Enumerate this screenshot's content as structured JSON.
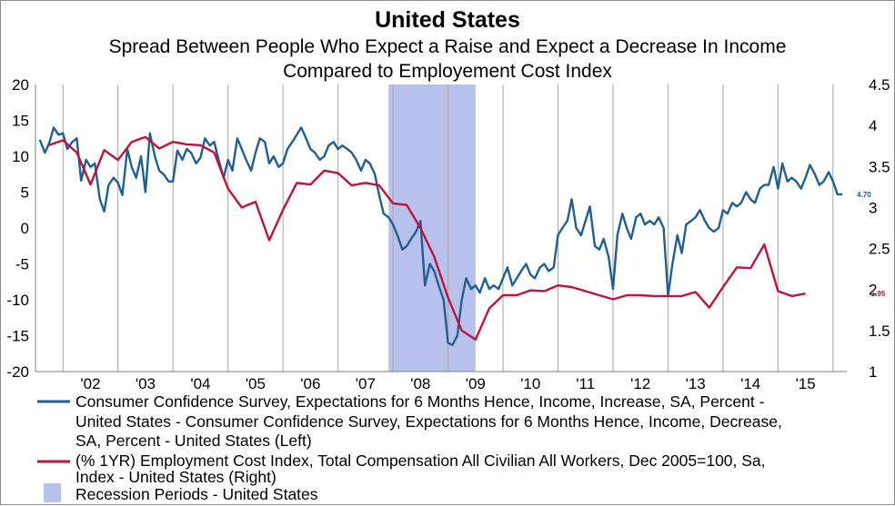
{
  "chart_data": {
    "type": "line",
    "title": "United States",
    "subtitle": [
      "Spread Between People Who Expect a Raise and Expect a Decrease In Income",
      "Compared to Employement Cost Index"
    ],
    "x_tick_labels": [
      "'02",
      "'03",
      "'04",
      "'05",
      "'06",
      "'07",
      "'08",
      "'09",
      "'10",
      "'11",
      "'12",
      "'13",
      "'14",
      "'15"
    ],
    "x_range": [
      2001.5,
      2016.25
    ],
    "ylim_left": [
      -20,
      20
    ],
    "yticks_left": [
      "20",
      "15",
      "10",
      "5",
      "0",
      "-5",
      "-10",
      "-15",
      "-20"
    ],
    "ylim_right": [
      1,
      4.5
    ],
    "yticks_right": [
      "4.5",
      "4",
      "3.5",
      "3",
      "2.5",
      "2",
      "1.5",
      "1"
    ],
    "grid": "vertical gridlines at year boundaries",
    "recession_periods": [
      {
        "start": 2007.92,
        "end": 2009.5
      }
    ],
    "series": [
      {
        "name": "Consumer Confidence Survey, Expectations for 6 Months Hence, Income, Increase, SA, Percent - United States - Consumer Confidence Survey, Expectations for 6 Months Hence, Income, Decrease, SA, Percent - United States  (Left)",
        "axis": "left",
        "color": "#1f5f91",
        "end_label": "4.70",
        "points": [
          [
            2001.58,
            12.3
          ],
          [
            2001.67,
            10.5
          ],
          [
            2001.75,
            11.8
          ],
          [
            2001.83,
            14.0
          ],
          [
            2001.92,
            13.0
          ],
          [
            2002.0,
            13.2
          ],
          [
            2002.08,
            11.0
          ],
          [
            2002.17,
            12.0
          ],
          [
            2002.25,
            12.5
          ],
          [
            2002.33,
            6.6
          ],
          [
            2002.42,
            9.5
          ],
          [
            2002.5,
            8.5
          ],
          [
            2002.58,
            9.0
          ],
          [
            2002.67,
            4.0
          ],
          [
            2002.75,
            2.3
          ],
          [
            2002.83,
            6.0
          ],
          [
            2002.92,
            7.0
          ],
          [
            2003.0,
            6.3
          ],
          [
            2003.08,
            4.6
          ],
          [
            2003.17,
            11.0
          ],
          [
            2003.25,
            8.5
          ],
          [
            2003.33,
            7.0
          ],
          [
            2003.42,
            10.0
          ],
          [
            2003.5,
            5.0
          ],
          [
            2003.58,
            13.2
          ],
          [
            2003.67,
            10.0
          ],
          [
            2003.75,
            8.0
          ],
          [
            2003.83,
            7.5
          ],
          [
            2003.92,
            6.5
          ],
          [
            2004.0,
            6.5
          ],
          [
            2004.08,
            10.8
          ],
          [
            2004.17,
            9.5
          ],
          [
            2004.25,
            11.0
          ],
          [
            2004.33,
            10.5
          ],
          [
            2004.42,
            9.0
          ],
          [
            2004.5,
            9.8
          ],
          [
            2004.58,
            12.5
          ],
          [
            2004.67,
            11.5
          ],
          [
            2004.75,
            12.0
          ],
          [
            2004.83,
            9.5
          ],
          [
            2004.92,
            7.0
          ],
          [
            2005.0,
            9.5
          ],
          [
            2005.08,
            8.0
          ],
          [
            2005.17,
            12.5
          ],
          [
            2005.25,
            11.0
          ],
          [
            2005.33,
            9.5
          ],
          [
            2005.42,
            8.0
          ],
          [
            2005.5,
            10.5
          ],
          [
            2005.58,
            12.5
          ],
          [
            2005.67,
            12.0
          ],
          [
            2005.75,
            9.0
          ],
          [
            2005.83,
            10.0
          ],
          [
            2005.92,
            8.5
          ],
          [
            2006.0,
            9.0
          ],
          [
            2006.08,
            11.0
          ],
          [
            2006.17,
            12.0
          ],
          [
            2006.25,
            13.0
          ],
          [
            2006.33,
            14.0
          ],
          [
            2006.42,
            12.5
          ],
          [
            2006.5,
            11.0
          ],
          [
            2006.58,
            10.5
          ],
          [
            2006.67,
            9.5
          ],
          [
            2006.75,
            10.0
          ],
          [
            2006.83,
            11.5
          ],
          [
            2006.92,
            12.0
          ],
          [
            2007.0,
            11.0
          ],
          [
            2007.08,
            11.5
          ],
          [
            2007.17,
            11.0
          ],
          [
            2007.25,
            10.5
          ],
          [
            2007.33,
            9.5
          ],
          [
            2007.42,
            8.0
          ],
          [
            2007.5,
            9.5
          ],
          [
            2007.58,
            9.0
          ],
          [
            2007.67,
            7.5
          ],
          [
            2007.75,
            4.5
          ],
          [
            2007.83,
            2.0
          ],
          [
            2007.92,
            1.5
          ],
          [
            2008.0,
            0.5
          ],
          [
            2008.08,
            -1.0
          ],
          [
            2008.17,
            -3.0
          ],
          [
            2008.25,
            -2.5
          ],
          [
            2008.33,
            -1.5
          ],
          [
            2008.42,
            -0.5
          ],
          [
            2008.5,
            1.0
          ],
          [
            2008.58,
            -8.0
          ],
          [
            2008.67,
            -5.0
          ],
          [
            2008.75,
            -6.0
          ],
          [
            2008.83,
            -8.0
          ],
          [
            2008.92,
            -10.0
          ],
          [
            2009.0,
            -16.0
          ],
          [
            2009.08,
            -16.3
          ],
          [
            2009.17,
            -15.0
          ],
          [
            2009.25,
            -10.0
          ],
          [
            2009.33,
            -7.0
          ],
          [
            2009.42,
            -8.5
          ],
          [
            2009.5,
            -8.0
          ],
          [
            2009.58,
            -9.0
          ],
          [
            2009.67,
            -7.0
          ],
          [
            2009.75,
            -8.5
          ],
          [
            2009.83,
            -8.0
          ],
          [
            2009.92,
            -8.5
          ],
          [
            2010.0,
            -7.0
          ],
          [
            2010.08,
            -5.5
          ],
          [
            2010.17,
            -8.0
          ],
          [
            2010.25,
            -7.0
          ],
          [
            2010.33,
            -6.0
          ],
          [
            2010.42,
            -5.0
          ],
          [
            2010.5,
            -6.5
          ],
          [
            2010.58,
            -7.0
          ],
          [
            2010.67,
            -5.5
          ],
          [
            2010.75,
            -5.0
          ],
          [
            2010.83,
            -6.0
          ],
          [
            2010.92,
            -5.5
          ],
          [
            2011.0,
            -1.0
          ],
          [
            2011.08,
            0.0
          ],
          [
            2011.17,
            1.0
          ],
          [
            2011.25,
            4.0
          ],
          [
            2011.33,
            0.0
          ],
          [
            2011.42,
            -1.0
          ],
          [
            2011.5,
            1.0
          ],
          [
            2011.58,
            3.0
          ],
          [
            2011.67,
            -2.5
          ],
          [
            2011.75,
            -3.0
          ],
          [
            2011.83,
            -1.5
          ],
          [
            2011.92,
            -4.0
          ],
          [
            2012.0,
            -8.5
          ],
          [
            2012.08,
            -1.0
          ],
          [
            2012.17,
            2.0
          ],
          [
            2012.25,
            0.0
          ],
          [
            2012.33,
            -1.5
          ],
          [
            2012.42,
            1.5
          ],
          [
            2012.5,
            2.0
          ],
          [
            2012.58,
            0.5
          ],
          [
            2012.67,
            1.0
          ],
          [
            2012.75,
            0.5
          ],
          [
            2012.83,
            1.5
          ],
          [
            2012.92,
            0.0
          ],
          [
            2013.0,
            -9.5
          ],
          [
            2013.08,
            -5.0
          ],
          [
            2013.17,
            -1.0
          ],
          [
            2013.25,
            -3.5
          ],
          [
            2013.33,
            0.5
          ],
          [
            2013.42,
            1.0
          ],
          [
            2013.5,
            1.5
          ],
          [
            2013.58,
            2.5
          ],
          [
            2013.67,
            1.0
          ],
          [
            2013.75,
            0.0
          ],
          [
            2013.83,
            -0.5
          ],
          [
            2013.92,
            0.0
          ],
          [
            2014.0,
            2.5
          ],
          [
            2014.08,
            2.0
          ],
          [
            2014.17,
            3.5
          ],
          [
            2014.25,
            3.0
          ],
          [
            2014.33,
            3.5
          ],
          [
            2014.42,
            5.0
          ],
          [
            2014.5,
            4.0
          ],
          [
            2014.58,
            3.5
          ],
          [
            2014.67,
            5.5
          ],
          [
            2014.75,
            6.0
          ],
          [
            2014.83,
            6.0
          ],
          [
            2014.92,
            8.5
          ],
          [
            2015.0,
            5.5
          ],
          [
            2015.08,
            9.0
          ],
          [
            2015.17,
            6.5
          ],
          [
            2015.25,
            7.0
          ],
          [
            2015.33,
            6.5
          ],
          [
            2015.42,
            5.5
          ],
          [
            2015.5,
            7.0
          ],
          [
            2015.58,
            8.8
          ],
          [
            2015.67,
            7.5
          ],
          [
            2015.75,
            6.0
          ],
          [
            2015.83,
            6.5
          ],
          [
            2015.92,
            7.8
          ],
          [
            2016.0,
            6.5
          ],
          [
            2016.08,
            4.7
          ],
          [
            2016.17,
            4.7
          ]
        ]
      },
      {
        "name": "(% 1YR) Employment Cost Index, Total Compensation All Civilian All Workers, Dec 2005=100, Sa, Index - United States  (Right)",
        "axis": "right",
        "color": "#c0123a",
        "end_label": "1.95",
        "points": [
          [
            2001.75,
            3.76
          ],
          [
            2002.0,
            3.82
          ],
          [
            2002.25,
            3.67
          ],
          [
            2002.5,
            3.28
          ],
          [
            2002.75,
            3.7
          ],
          [
            2003.0,
            3.58
          ],
          [
            2003.25,
            3.8
          ],
          [
            2003.5,
            3.86
          ],
          [
            2003.75,
            3.72
          ],
          [
            2004.0,
            3.8
          ],
          [
            2004.25,
            3.77
          ],
          [
            2004.5,
            3.76
          ],
          [
            2004.75,
            3.67
          ],
          [
            2005.0,
            3.23
          ],
          [
            2005.25,
            3.0
          ],
          [
            2005.5,
            3.07
          ],
          [
            2005.75,
            2.6
          ],
          [
            2006.0,
            2.97
          ],
          [
            2006.25,
            3.3
          ],
          [
            2006.5,
            3.28
          ],
          [
            2006.75,
            3.45
          ],
          [
            2007.0,
            3.42
          ],
          [
            2007.25,
            3.27
          ],
          [
            2007.5,
            3.3
          ],
          [
            2007.75,
            3.27
          ],
          [
            2008.0,
            3.05
          ],
          [
            2008.25,
            3.03
          ],
          [
            2008.5,
            2.75
          ],
          [
            2008.75,
            2.4
          ],
          [
            2009.0,
            1.9
          ],
          [
            2009.25,
            1.5
          ],
          [
            2009.5,
            1.39
          ],
          [
            2009.75,
            1.77
          ],
          [
            2010.0,
            1.93
          ],
          [
            2010.25,
            1.93
          ],
          [
            2010.5,
            1.99
          ],
          [
            2010.75,
            1.98
          ],
          [
            2011.0,
            2.05
          ],
          [
            2011.25,
            2.03
          ],
          [
            2011.5,
            1.98
          ],
          [
            2011.75,
            1.93
          ],
          [
            2012.0,
            1.88
          ],
          [
            2012.25,
            1.93
          ],
          [
            2012.5,
            1.93
          ],
          [
            2012.75,
            1.92
          ],
          [
            2013.0,
            1.92
          ],
          [
            2013.25,
            1.92
          ],
          [
            2013.5,
            1.97
          ],
          [
            2013.75,
            1.78
          ],
          [
            2014.0,
            2.03
          ],
          [
            2014.25,
            2.27
          ],
          [
            2014.5,
            2.26
          ],
          [
            2014.75,
            2.55
          ],
          [
            2015.0,
            1.98
          ],
          [
            2015.25,
            1.92
          ],
          [
            2015.5,
            1.95
          ]
        ]
      },
      {
        "name": "Recession Periods - United States",
        "type": "area",
        "color": "#b8c0ec"
      }
    ]
  }
}
